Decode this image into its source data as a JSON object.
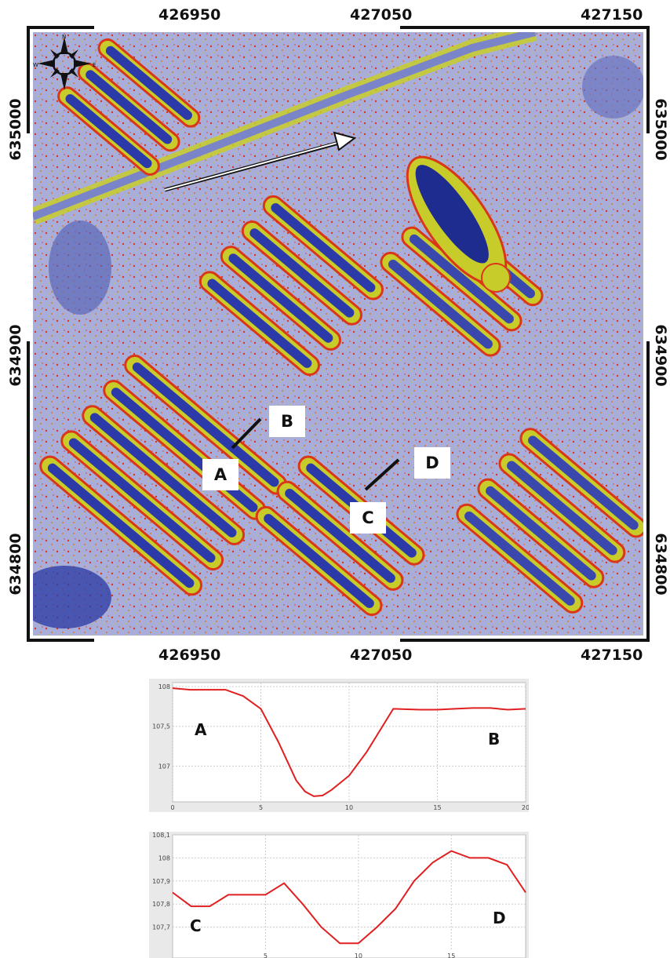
{
  "map": {
    "x_ticks": [
      "426950",
      "427050",
      "427150"
    ],
    "y_ticks": [
      "635000",
      "634900",
      "634800"
    ],
    "profile_labels": [
      "A",
      "B",
      "C",
      "D"
    ],
    "compass": {
      "north": "N",
      "west": "W",
      "east": "E"
    },
    "colors": {
      "low": "#2b3aa8",
      "mid": "#9fa6d6",
      "high": "#c8cc2a",
      "edge": "#d9361a"
    }
  },
  "chart_data": [
    {
      "type": "line",
      "series": [
        {
          "x": [
            0,
            1,
            2,
            3,
            4,
            5,
            6,
            7,
            7.5,
            8,
            8.5,
            9,
            10,
            11,
            12.5,
            14,
            15,
            16,
            17,
            18,
            19,
            20
          ],
          "y": [
            107.98,
            107.96,
            107.96,
            107.96,
            107.88,
            107.72,
            107.3,
            106.82,
            106.68,
            106.62,
            106.63,
            106.7,
            106.88,
            107.18,
            107.72,
            107.71,
            107.71,
            107.72,
            107.73,
            107.73,
            107.71,
            107.72
          ],
          "color": "#e02020"
        }
      ],
      "x_ticks": [
        "0",
        "5",
        "10",
        "15",
        "20"
      ],
      "y_ticks": [
        "108",
        "107,5",
        "107"
      ],
      "xlim": [
        0,
        20
      ],
      "ylim": [
        106.55,
        108.05
      ],
      "grid": true,
      "annotations": [
        "A",
        "B"
      ]
    },
    {
      "type": "line",
      "series": [
        {
          "x": [
            0,
            1,
            2,
            3,
            4,
            5,
            6,
            7,
            8,
            9,
            10,
            11,
            12,
            13,
            14,
            15,
            16,
            17,
            18,
            19
          ],
          "y": [
            107.85,
            107.79,
            107.79,
            107.84,
            107.84,
            107.84,
            107.89,
            107.8,
            107.7,
            107.63,
            107.63,
            107.7,
            107.78,
            107.9,
            107.98,
            108.03,
            108.0,
            108.0,
            107.97,
            107.85
          ],
          "color": "#e02020"
        }
      ],
      "x_ticks": [
        "5",
        "10",
        "15"
      ],
      "y_ticks": [
        "108,1",
        "108",
        "107,9",
        "107,8",
        "107,7"
      ],
      "xlim": [
        0,
        19
      ],
      "ylim": [
        107.6,
        108.1
      ],
      "grid": true,
      "annotations": [
        "C",
        "D"
      ]
    }
  ]
}
